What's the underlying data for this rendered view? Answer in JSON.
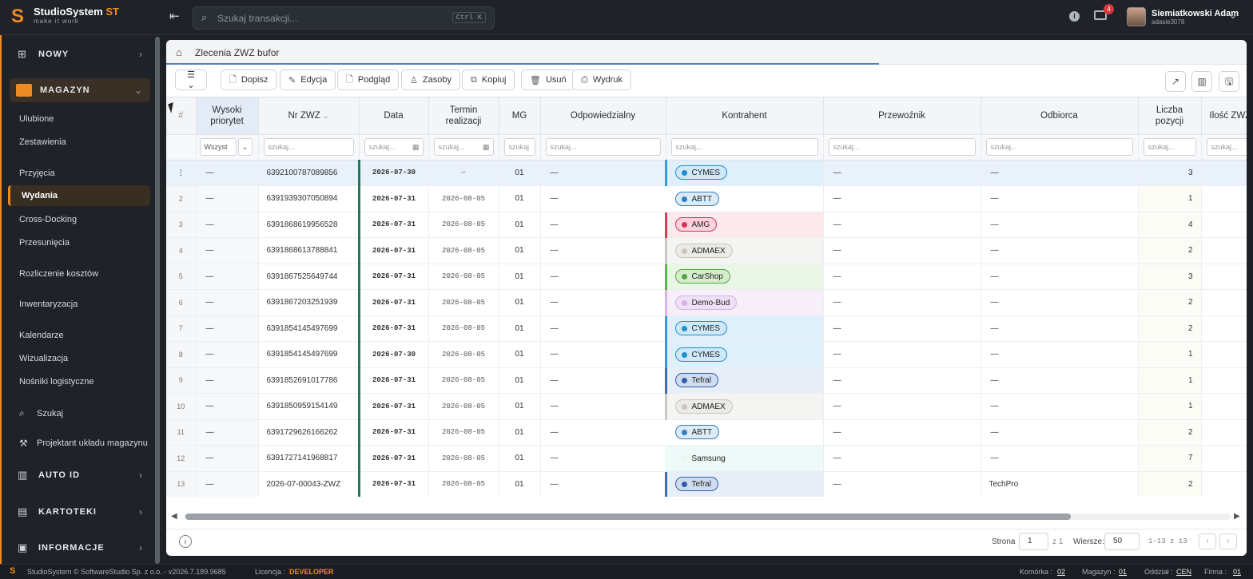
{
  "app": {
    "name": "StudioSystem",
    "name_suffix": "ST",
    "tagline": "make it work"
  },
  "search": {
    "placeholder": "Szukaj transakcji...",
    "shortcut": "Ctrl K"
  },
  "header": {
    "mail_badge": "4",
    "user_name": "Siemiatkowski Adam",
    "user_login": "adasie3078"
  },
  "sidebar": {
    "sections": [
      {
        "label": "NOWY",
        "icon": "plus-square-icon"
      },
      {
        "label": "MAGAZYN",
        "icon": "warehouse-icon"
      },
      {
        "label": "AUTO ID",
        "icon": "barcode-icon"
      },
      {
        "label": "KARTOTEKI",
        "icon": "folder-icon"
      },
      {
        "label": "INFORMACJE",
        "icon": "info-icon"
      }
    ],
    "items": [
      "Ulubione",
      "Zestawienia",
      "Przyjęcia",
      "Wydania",
      "Cross-Docking",
      "Przesunięcia",
      "Rozliczenie kosztów",
      "Inwentaryzacja",
      "Kalendarze",
      "Wizualizacja",
      "Nośniki logistyczne"
    ],
    "search_label": "Szukaj",
    "designer_label": "Projektant układu magazynu"
  },
  "panel": {
    "title": "Zlecenia ZWZ bufor"
  },
  "toolbar": {
    "dopisz": "Dopisz",
    "edycja": "Edycja",
    "podglad": "Podgląd",
    "zasoby": "Zasoby",
    "kopiuj": "Kopiuj",
    "usun": "Usuń",
    "wydruk": "Wydruk"
  },
  "table": {
    "headers": {
      "row": "#",
      "priority_1": "Wysoki",
      "priority_2": "priorytet",
      "nr": "Nr ZWZ",
      "data": "Data",
      "termin_1": "Termin",
      "termin_2": "realizacji",
      "mg": "MG",
      "odp": "Odpowiedzialny",
      "kontrahent": "Kontrahent",
      "przewoznik": "Przewoźnik",
      "odbiorca": "Odbiorca",
      "liczba_1": "Liczba",
      "liczba_2": "pozycji",
      "ilosc": "Ilość ZWZ"
    },
    "filters": {
      "all": "Wszyst",
      "search": "szukaj...",
      "mg_search": "szukaj"
    },
    "rows": [
      {
        "n": "⋮",
        "pri": "—",
        "nr": "6392100787089856",
        "data": "2026-07-30",
        "termin": "—",
        "mg": "01",
        "odp": "—",
        "kon": "CYMES",
        "prz": "—",
        "odb": "—",
        "liczba": "3"
      },
      {
        "n": "2",
        "pri": "—",
        "nr": "6391939307050894",
        "data": "2026-07-31",
        "termin": "2026-08-05",
        "mg": "01",
        "odp": "—",
        "kon": "ABTT",
        "prz": "—",
        "odb": "—",
        "liczba": "1"
      },
      {
        "n": "3",
        "pri": "—",
        "nr": "6391868619956528",
        "data": "2026-07-31",
        "termin": "2026-08-05",
        "mg": "01",
        "odp": "—",
        "kon": "AMG",
        "prz": "—",
        "odb": "—",
        "liczba": "4"
      },
      {
        "n": "4",
        "pri": "—",
        "nr": "6391868613788841",
        "data": "2026-07-31",
        "termin": "2026-08-05",
        "mg": "01",
        "odp": "—",
        "kon": "ADMAEX",
        "prz": "—",
        "odb": "—",
        "liczba": "2"
      },
      {
        "n": "5",
        "pri": "—",
        "nr": "6391867525649744",
        "data": "2026-07-31",
        "termin": "2026-08-05",
        "mg": "01",
        "odp": "—",
        "kon": "CarShop",
        "prz": "—",
        "odb": "—",
        "liczba": "3"
      },
      {
        "n": "6",
        "pri": "—",
        "nr": "6391867203251939",
        "data": "2026-07-31",
        "termin": "2026-08-05",
        "mg": "01",
        "odp": "—",
        "kon": "Demo-Bud",
        "prz": "—",
        "odb": "—",
        "liczba": "2"
      },
      {
        "n": "7",
        "pri": "—",
        "nr": "6391854145497699",
        "data": "2026-07-31",
        "termin": "2026-08-05",
        "mg": "01",
        "odp": "—",
        "kon": "CYMES",
        "prz": "—",
        "odb": "—",
        "liczba": "2"
      },
      {
        "n": "8",
        "pri": "—",
        "nr": "6391854145497699",
        "data": "2026-07-30",
        "termin": "2026-08-05",
        "mg": "01",
        "odp": "—",
        "kon": "CYMES",
        "prz": "—",
        "odb": "—",
        "liczba": "1"
      },
      {
        "n": "9",
        "pri": "—",
        "nr": "6391852691017786",
        "data": "2026-07-31",
        "termin": "2026-08-05",
        "mg": "01",
        "odp": "—",
        "kon": "Tefral",
        "prz": "—",
        "odb": "—",
        "liczba": "1"
      },
      {
        "n": "10",
        "pri": "—",
        "nr": "6391850959154149",
        "data": "2026-07-31",
        "termin": "2026-08-05",
        "mg": "01",
        "odp": "—",
        "kon": "ADMAEX",
        "prz": "—",
        "odb": "—",
        "liczba": "1"
      },
      {
        "n": "11",
        "pri": "—",
        "nr": "6391729626166262",
        "data": "2026-07-31",
        "termin": "2026-08-05",
        "mg": "01",
        "odp": "—",
        "kon": "ABTT",
        "prz": "—",
        "odb": "—",
        "liczba": "2"
      },
      {
        "n": "12",
        "pri": "—",
        "nr": "6391727141968817",
        "data": "2026-07-31",
        "termin": "2026-08-05",
        "mg": "01",
        "odp": "—",
        "kon": "Samsung",
        "prz": "—",
        "odb": "—",
        "liczba": "7"
      },
      {
        "n": "13",
        "pri": "—",
        "nr": "2026-07-00043-ZWZ",
        "data": "2026-07-31",
        "termin": "2026-08-05",
        "mg": "01",
        "odp": "—",
        "kon": "Tefral",
        "prz": "—",
        "odb": "TechPro",
        "liczba": "2"
      }
    ]
  },
  "kontrahent_colors": {
    "CYMES": {
      "bg": "#dff0fa",
      "border": "#2b9fd6",
      "dot": "#1f8fd0",
      "chip": "#cfe8f7"
    },
    "ABTT": {
      "bg": "#ffffff",
      "border": "#ffffff",
      "dot": "#2f7fc0",
      "chip": "#dcebf7"
    },
    "AMG": {
      "bg": "#fde8ec",
      "border": "#d43a5a",
      "dot": "#d8325a",
      "chip": "#fbd3dc"
    },
    "ADMAEX": {
      "bg": "#f4f4f3",
      "border": "#c9c9c6",
      "dot": "#cbc4bc",
      "chip": "#ebeae7"
    },
    "CarShop": {
      "bg": "#e9f6e5",
      "border": "#5cb54a",
      "dot": "#4fa83c",
      "chip": "#d5eccd"
    },
    "Demo-Bud": {
      "bg": "#f6eef9",
      "border": "#d7b6e6",
      "dot": "#d3b2e4",
      "chip": "#efe1f5"
    },
    "Tefral": {
      "bg": "#e8eef7",
      "border": "#3d6eae",
      "dot": "#2f5fa8",
      "chip": "#cfdcef"
    },
    "Samsung": {
      "bg": "#eefaf7",
      "border": "#eefaf7",
      "dot": "#e6f7f3",
      "chip": "#eefaf7"
    }
  },
  "footer": {
    "strona_label": "Strona",
    "page": "1",
    "of": "z 1",
    "wiersze_label": "Wiersze:",
    "rows_per_page": "50",
    "range": "1-13 z 13"
  },
  "status": {
    "copyright": "StudioSystem © SoftwareStudio Sp. z o.o. - v2026.7.189.9685",
    "licencja_label": "Licencja :",
    "licencja": "DEVELOPER",
    "komorka_label": "Komórka :",
    "komorka": "02",
    "magazyn_label": "Magazyn :",
    "magazyn": "01",
    "oddzial_label": "Oddział :",
    "oddzial": "CEN",
    "firma_label": "Firma :",
    "firma": "01"
  }
}
